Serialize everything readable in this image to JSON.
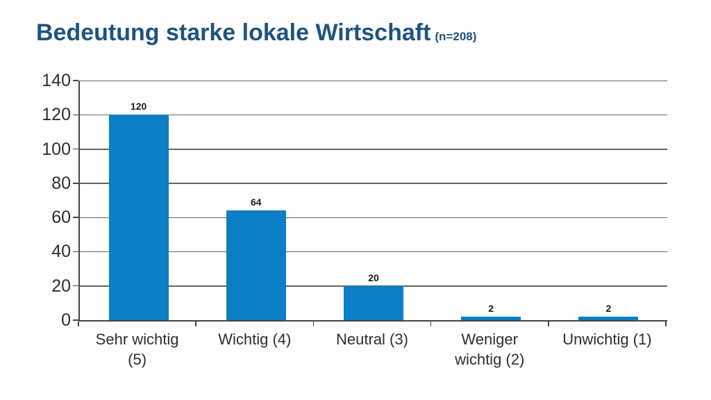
{
  "header": {
    "title": "Bedeutung starke lokale Wirtschaft",
    "sample_size": "(n=208)"
  },
  "colors": {
    "title_text": "#1d5480",
    "bar_fill": "#0b7ec6",
    "gridline": "#646464",
    "axis_line": "#444444",
    "axis_label_text": "#2e2e2e",
    "value_label_text": "#1a1a1a",
    "background": "#ffffff"
  },
  "chart_data": {
    "type": "bar",
    "title": "Bedeutung starke lokale Wirtschaft",
    "subtitle": "(n=208)",
    "categories": [
      "Sehr wichtig (5)",
      "Wichtig (4)",
      "Neutral (3)",
      "Weniger wichtig (2)",
      "Unwichtig (1)"
    ],
    "category_label_lines": [
      [
        "Sehr wichtig",
        "(5)"
      ],
      [
        "Wichtig (4)"
      ],
      [
        "Neutral (3)"
      ],
      [
        "Weniger",
        "wichtig (2)"
      ],
      [
        "Unwichtig (1)"
      ]
    ],
    "values": [
      120,
      64,
      20,
      2,
      2
    ],
    "data_labels": [
      "120",
      "64",
      "20",
      "2",
      "2"
    ],
    "xlabel": "",
    "ylabel": "",
    "ylim": [
      0,
      140
    ],
    "yticks": [
      0,
      20,
      40,
      60,
      80,
      100,
      120,
      140
    ],
    "grid": "horizontal",
    "legend_position": "none",
    "bar_color": "#0b7ec6"
  }
}
